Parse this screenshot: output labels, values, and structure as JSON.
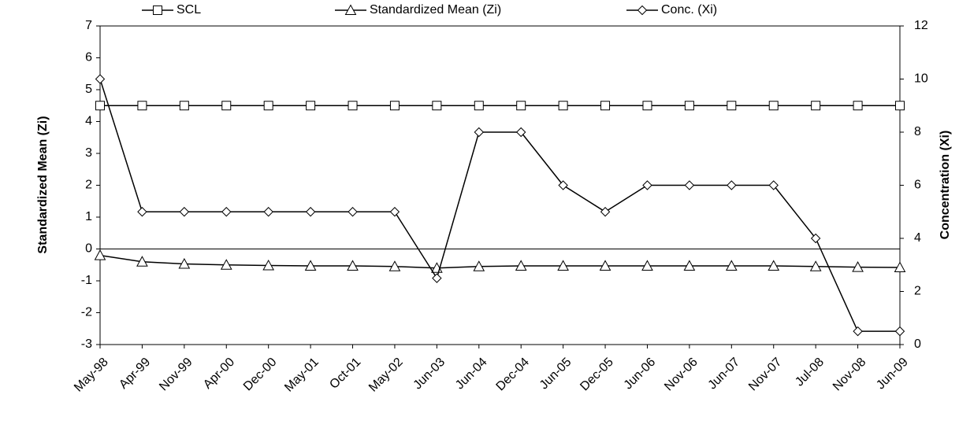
{
  "chart_data": {
    "type": "line",
    "ylabel": "Standardized Mean (Zi)",
    "y2label": "Concentration (Xi)",
    "categories": [
      "May-98",
      "Apr-99",
      "Nov-99",
      "Apr-00",
      "Dec-00",
      "May-01",
      "Oct-01",
      "May-02",
      "Jun-03",
      "Jun-04",
      "Dec-04",
      "Jun-05",
      "Dec-05",
      "Jun-06",
      "Nov-06",
      "Jun-07",
      "Nov-07",
      "Jul-08",
      "Nov-08",
      "Jun-09"
    ],
    "series": [
      {
        "name": "SCL",
        "color": "#000000",
        "marker": "square",
        "axis": "y",
        "values": [
          4.5,
          4.5,
          4.5,
          4.5,
          4.5,
          4.5,
          4.5,
          4.5,
          4.5,
          4.5,
          4.5,
          4.5,
          4.5,
          4.5,
          4.5,
          4.5,
          4.5,
          4.5,
          4.5,
          4.5
        ]
      },
      {
        "name": "Standardized Mean (Zi)",
        "color": "#000000",
        "marker": "triangle",
        "axis": "y",
        "values": [
          -0.2,
          -0.4,
          -0.47,
          -0.5,
          -0.52,
          -0.53,
          -0.53,
          -0.55,
          -0.6,
          -0.55,
          -0.53,
          -0.53,
          -0.53,
          -0.53,
          -0.53,
          -0.53,
          -0.53,
          -0.55,
          -0.57,
          -0.58
        ]
      },
      {
        "name": "Conc. (Xi)",
        "color": "#000000",
        "marker": "diamond",
        "axis": "y2",
        "values": [
          10,
          5,
          5,
          5,
          5,
          5,
          5,
          5,
          2.5,
          8,
          8,
          6,
          5,
          6,
          6,
          6,
          6,
          4,
          0.5,
          0.5
        ]
      }
    ],
    "ylim": [
      -3,
      7
    ],
    "yticks": [
      -3,
      -2,
      -1,
      0,
      1,
      2,
      3,
      4,
      5,
      6,
      7
    ],
    "y2lim": [
      0,
      12
    ],
    "y2ticks": [
      0,
      2,
      4,
      6,
      8,
      10,
      12
    ],
    "legend": "top"
  }
}
